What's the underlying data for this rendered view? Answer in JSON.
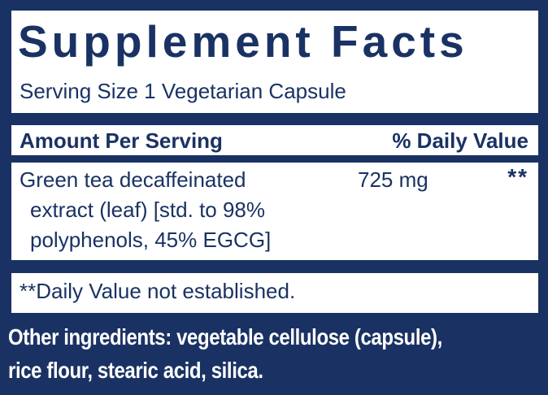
{
  "colors": {
    "navy": "#1a3263",
    "panel_background": "#ffffff",
    "panel_text": "#1a3263",
    "other_ingredients_text": "#ffffff"
  },
  "panel": {
    "title": "Supplement Facts",
    "serving_size": "Serving Size 1 Vegetarian Capsule",
    "header": {
      "amount_col": "Amount Per Serving",
      "dv_col": "% Daily Value"
    },
    "rows": [
      {
        "name_lines": [
          "Green tea decaffeinated",
          "extract (leaf) [std. to 98%",
          "polyphenols, 45% EGCG]"
        ],
        "amount": "725 mg",
        "daily_value": "**"
      }
    ],
    "footnote": "**Daily Value not established."
  },
  "other_ingredients": {
    "label": "Other ingredients:",
    "line1_rest": " vegetable cellulose (capsule),",
    "line2": "rice flour, stearic acid, silica."
  }
}
